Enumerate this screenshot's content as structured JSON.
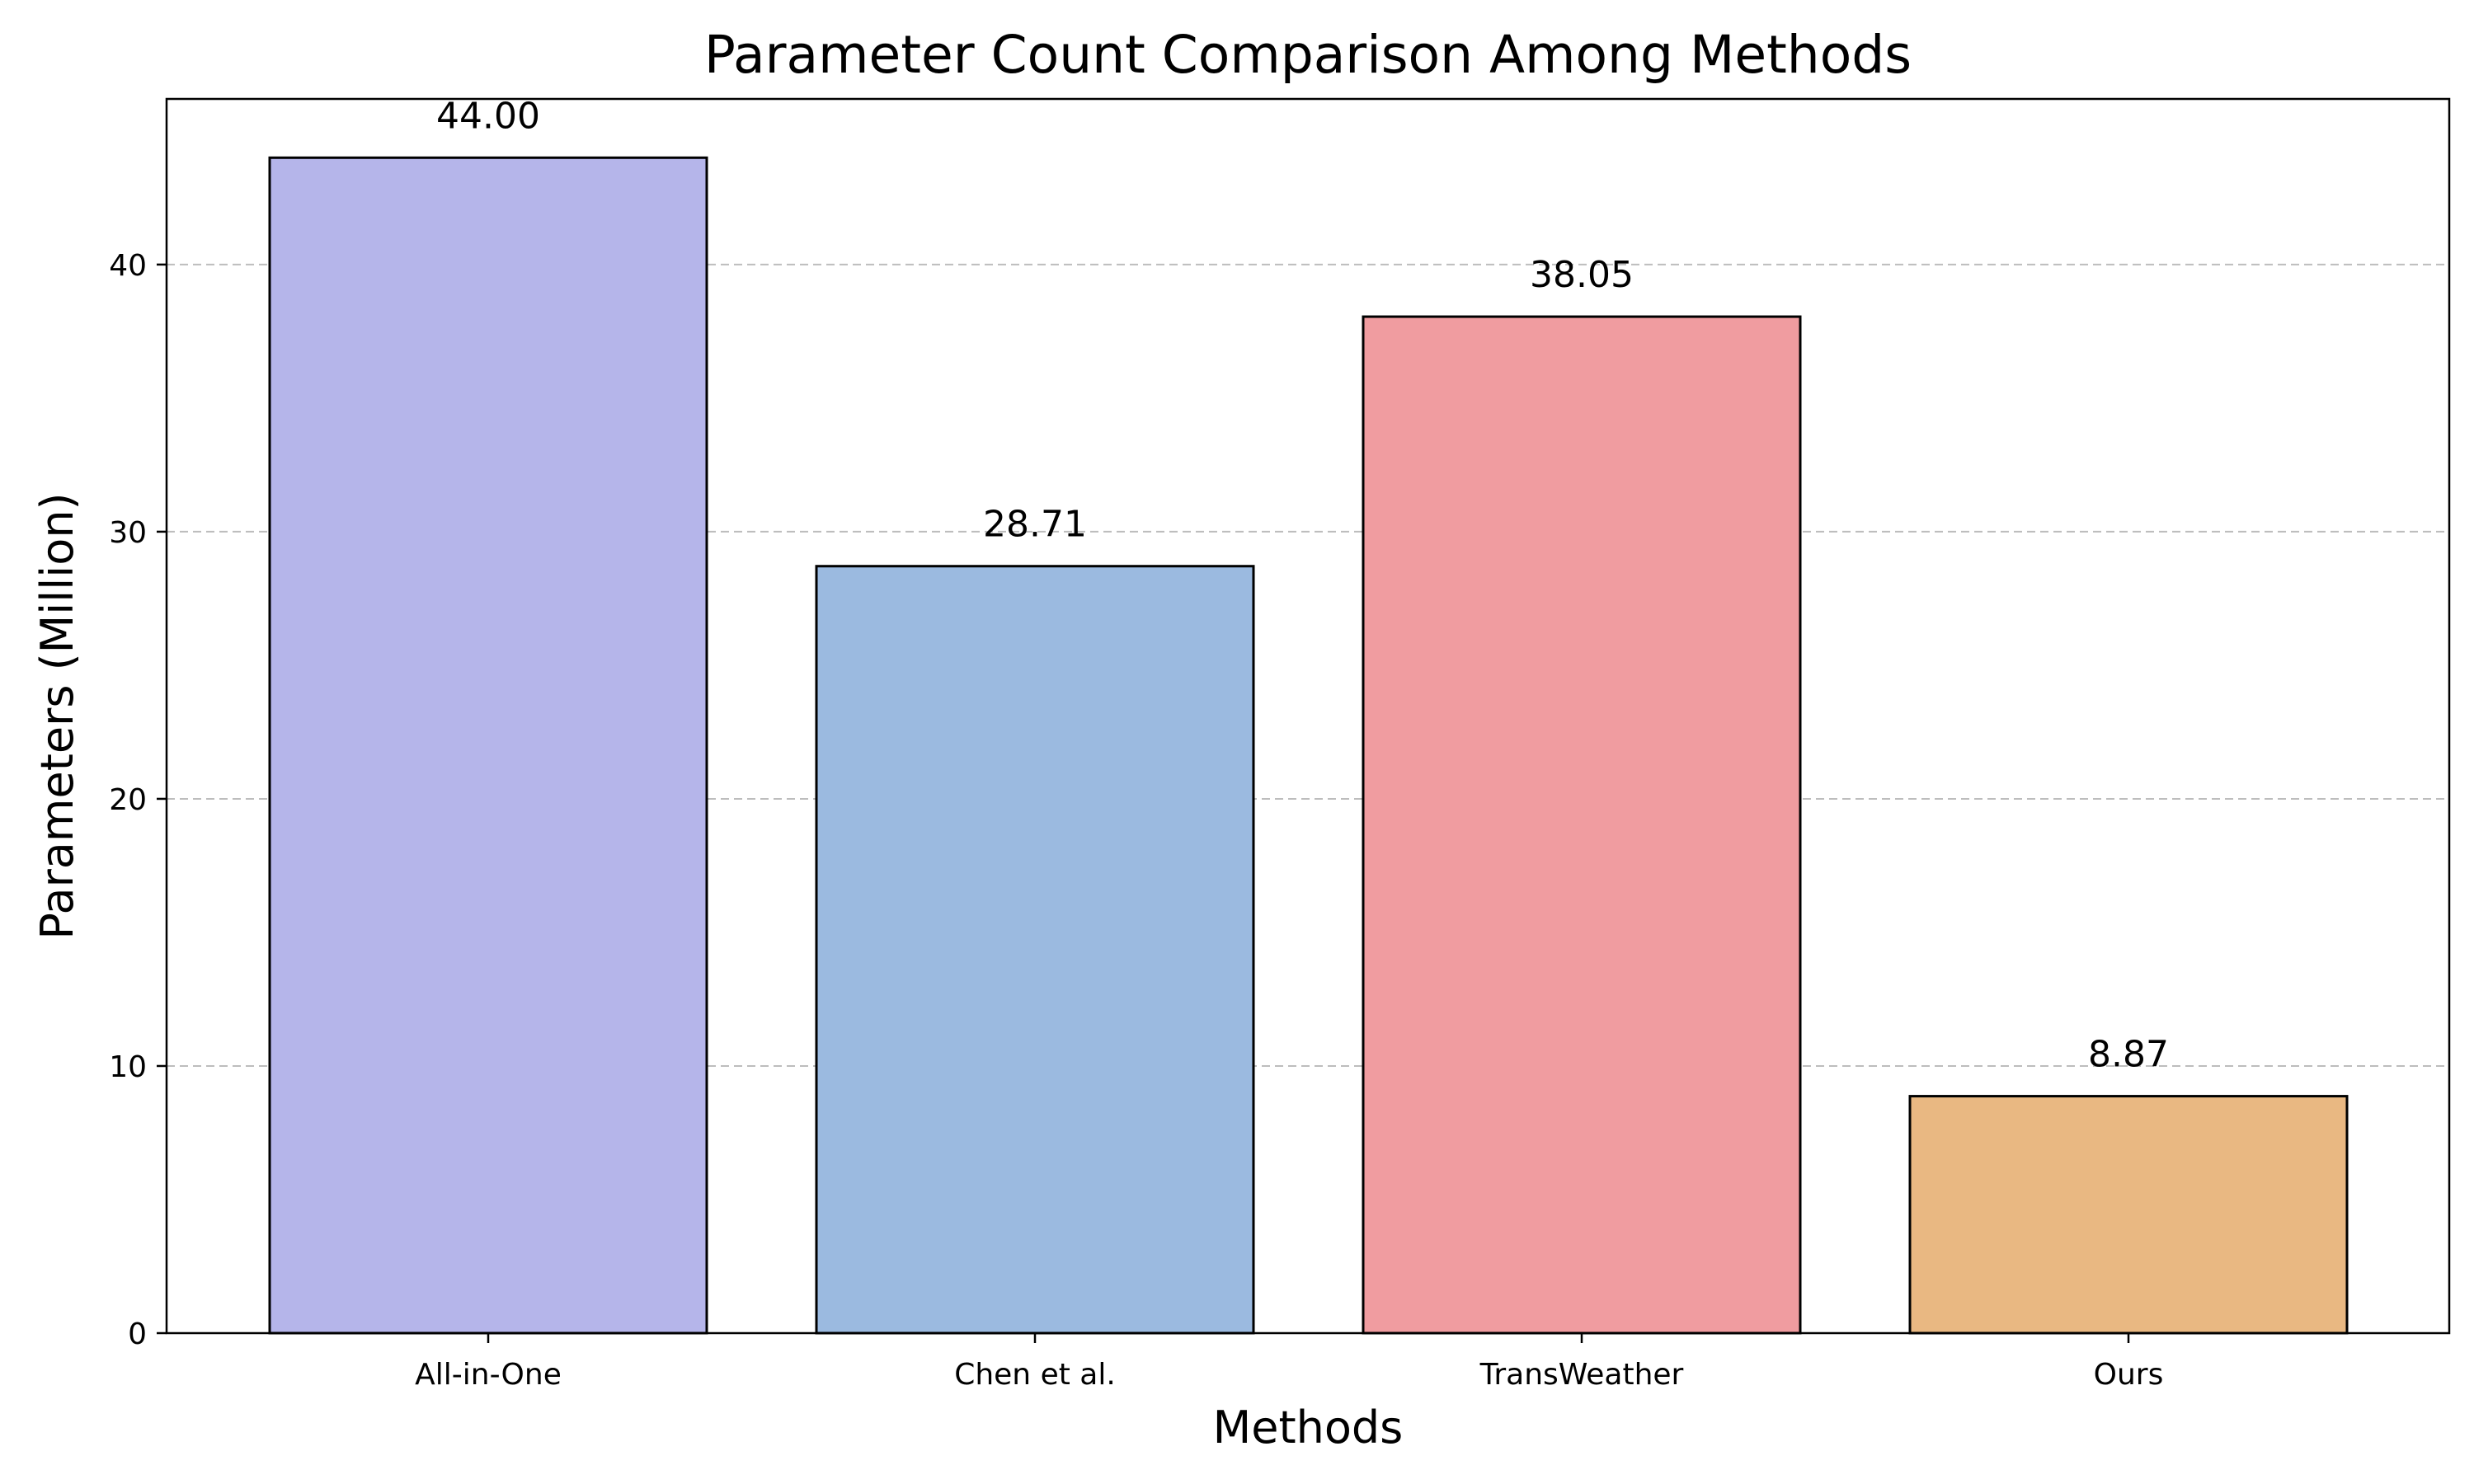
{
  "chart_data": {
    "type": "bar",
    "title": "Parameter Count Comparison Among Methods",
    "xlabel": "Methods",
    "ylabel": "Parameters (Million)",
    "categories": [
      "All-in-One",
      "Chen et al.",
      "TransWeather",
      "Ours"
    ],
    "values": [
      44.0,
      28.71,
      38.05,
      8.87
    ],
    "value_labels": [
      "44.00",
      "28.71",
      "38.05",
      "8.87"
    ],
    "colors": [
      "#b5b5ea",
      "#9bbae0",
      "#f09ca0",
      "#e9b882"
    ],
    "ylim": [
      0,
      46.2
    ],
    "yticks": [
      0,
      10,
      20,
      30,
      40
    ],
    "ytick_labels": [
      "0",
      "10",
      "20",
      "30",
      "40"
    ],
    "grid": "y-dashed",
    "legend": "none"
  }
}
